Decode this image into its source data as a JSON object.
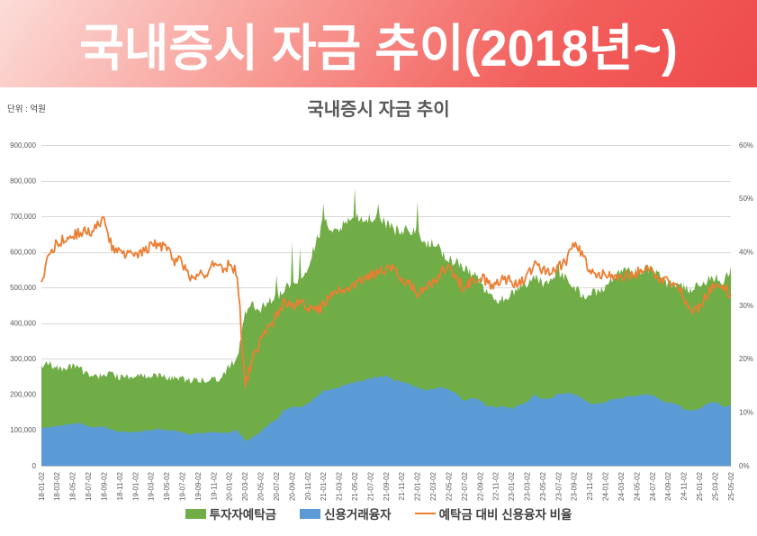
{
  "banner": {
    "title": "국내증시 자금 추이(2018년~)",
    "gradient_top": "#FCDCD8",
    "gradient_bottom": "#EE4B4B",
    "text_color": "#FFFFFF"
  },
  "chart_data": {
    "type": "area+line",
    "title": "국내증시 자금 추이",
    "unit_label": "단위 : 억원",
    "x_monthly_range": [
      "2018-01",
      "2025-05"
    ],
    "x_tick_labels": [
      "18-01-02",
      "18-03-02",
      "18-05-02",
      "18-07-02",
      "18-09-02",
      "18-11-02",
      "19-01-02",
      "19-03-02",
      "19-05-02",
      "19-07-02",
      "19-09-02",
      "19-11-02",
      "20-01-02",
      "20-03-02",
      "20-05-02",
      "20-07-02",
      "20-09-02",
      "20-11-02",
      "21-01-02",
      "21-03-02",
      "21-05-02",
      "21-07-02",
      "21-09-02",
      "21-11-02",
      "22-01-02",
      "22-03-02",
      "22-05-02",
      "22-07-02",
      "22-09-02",
      "22-11-02",
      "23-01-02",
      "23-03-02",
      "23-05-02",
      "23-07-02",
      "23-09-02",
      "23-11-02",
      "24-01-02",
      "24-03-02",
      "24-05-02",
      "24-07-02",
      "24-09-02",
      "24-11-02",
      "25-01-02",
      "25-03-02",
      "25-05-02"
    ],
    "left_axis": {
      "min": 0,
      "max": 900000,
      "step": 100000
    },
    "right_axis": {
      "min": 0,
      "max": 60,
      "step": 10,
      "unit": "%"
    },
    "grid_color": "#D9D9D9",
    "axis_line_color": "#BFBFBF",
    "tick_text_color": "#595959",
    "legend_position": "bottom",
    "series": [
      {
        "name": "투자자예탁금",
        "type": "area",
        "axis": "left",
        "color": "#70AD47",
        "monthly_values": [
          280000,
          285000,
          275000,
          270000,
          280000,
          270000,
          255000,
          250000,
          260000,
          255000,
          250000,
          245000,
          250000,
          255000,
          250000,
          255000,
          245000,
          245000,
          245000,
          240000,
          240000,
          240000,
          245000,
          245000,
          280000,
          300000,
          430000,
          450000,
          440000,
          460000,
          470000,
          500000,
          510000,
          520000,
          560000,
          620000,
          690000,
          670000,
          660000,
          690000,
          700000,
          690000,
          695000,
          700000,
          680000,
          660000,
          660000,
          660000,
          650000,
          620000,
          630000,
          600000,
          580000,
          570000,
          550000,
          540000,
          520000,
          480000,
          465000,
          470000,
          480000,
          500000,
          510000,
          530000,
          510000,
          520000,
          540000,
          530000,
          500000,
          480000,
          480000,
          490000,
          500000,
          530000,
          540000,
          550000,
          540000,
          550000,
          550000,
          530000,
          510000,
          510000,
          500000,
          490000,
          510000,
          520000,
          530000,
          510000,
          560000
        ]
      },
      {
        "name": "신용거래융자",
        "type": "area",
        "axis": "left",
        "color": "#5B9BD5",
        "monthly_values": [
          104000,
          108000,
          112000,
          115000,
          118000,
          118000,
          110000,
          108000,
          110000,
          100000,
          95000,
          94000,
          95000,
          98000,
          100000,
          103000,
          100000,
          98000,
          95000,
          88000,
          92000,
          92000,
          95000,
          92000,
          95000,
          100000,
          70000,
          80000,
          95000,
          115000,
          130000,
          155000,
          165000,
          165000,
          175000,
          190000,
          210000,
          215000,
          220000,
          230000,
          235000,
          240000,
          245000,
          250000,
          250000,
          240000,
          235000,
          230000,
          220000,
          210000,
          215000,
          220000,
          215000,
          200000,
          180000,
          190000,
          185000,
          165000,
          165000,
          165000,
          160000,
          170000,
          180000,
          200000,
          185000,
          190000,
          200000,
          205000,
          200000,
          190000,
          175000,
          175000,
          180000,
          185000,
          190000,
          195000,
          195000,
          200000,
          200000,
          185000,
          175000,
          175000,
          158000,
          155000,
          160000,
          175000,
          180000,
          165000,
          170000
        ]
      },
      {
        "name": "예탁금 대비 신용융자 비율",
        "type": "line",
        "axis": "right",
        "color": "#ED7D31",
        "monthly_values": [
          34.0,
          40.0,
          41.5,
          42.5,
          43.0,
          44.0,
          43.5,
          44.5,
          46.0,
          41.0,
          40.5,
          39.5,
          39.0,
          40.5,
          41.0,
          41.5,
          40.5,
          38.5,
          38.0,
          34.5,
          36.5,
          36.0,
          37.5,
          37.0,
          37.5,
          36.0,
          15.0,
          20.0,
          23.5,
          26.0,
          28.0,
          30.5,
          30.0,
          30.5,
          29.5,
          29.0,
          30.0,
          32.0,
          33.5,
          33.0,
          33.5,
          35.0,
          35.5,
          36.0,
          37.0,
          36.5,
          35.0,
          34.5,
          31.5,
          34.0,
          34.0,
          36.5,
          37.0,
          35.0,
          33.0,
          35.0,
          35.5,
          34.0,
          34.0,
          35.0,
          34.5,
          34.0,
          35.5,
          37.5,
          36.5,
          36.5,
          37.0,
          38.5,
          42.0,
          39.5,
          36.5,
          36.0,
          36.0,
          35.0,
          35.5,
          35.5,
          36.0,
          36.5,
          36.5,
          35.0,
          34.5,
          34.5,
          31.5,
          29.0,
          29.5,
          32.0,
          34.0,
          33.5,
          32.0
        ]
      }
    ],
    "deposit_spikes": [
      {
        "month": "2020-07",
        "value": 535000
      },
      {
        "month": "2020-09",
        "value": 630000
      },
      {
        "month": "2020-10",
        "value": 610000
      },
      {
        "month": "2021-01",
        "value": 735000
      },
      {
        "month": "2021-05",
        "value": 780000
      },
      {
        "month": "2021-08",
        "value": 735000
      },
      {
        "month": "2022-01",
        "value": 740000
      },
      {
        "month": "2023-07",
        "value": 575000
      }
    ]
  }
}
